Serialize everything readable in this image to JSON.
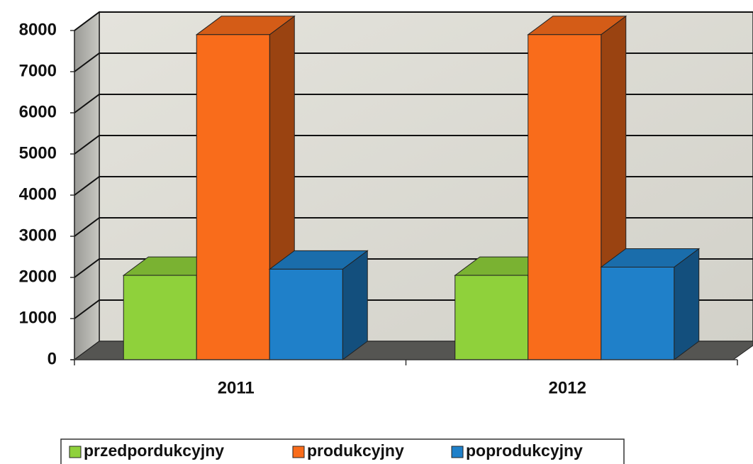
{
  "chart_data": {
    "type": "bar3d",
    "categories": [
      "2011",
      "2012"
    ],
    "series": [
      {
        "name": "przedpordukcyjny",
        "color": "#8fd13b",
        "values": [
          2050,
          2050
        ]
      },
      {
        "name": "produkcyjny",
        "color": "#f96c1b",
        "values": [
          7900,
          7900
        ]
      },
      {
        "name": "poprodukcyjny",
        "color": "#1f80c9",
        "values": [
          2200,
          2250
        ]
      }
    ],
    "ylim": [
      0,
      8000
    ],
    "yticks": [
      0,
      1000,
      2000,
      3000,
      4000,
      5000,
      6000,
      7000,
      8000
    ],
    "grid": true,
    "legend": "bottom"
  }
}
